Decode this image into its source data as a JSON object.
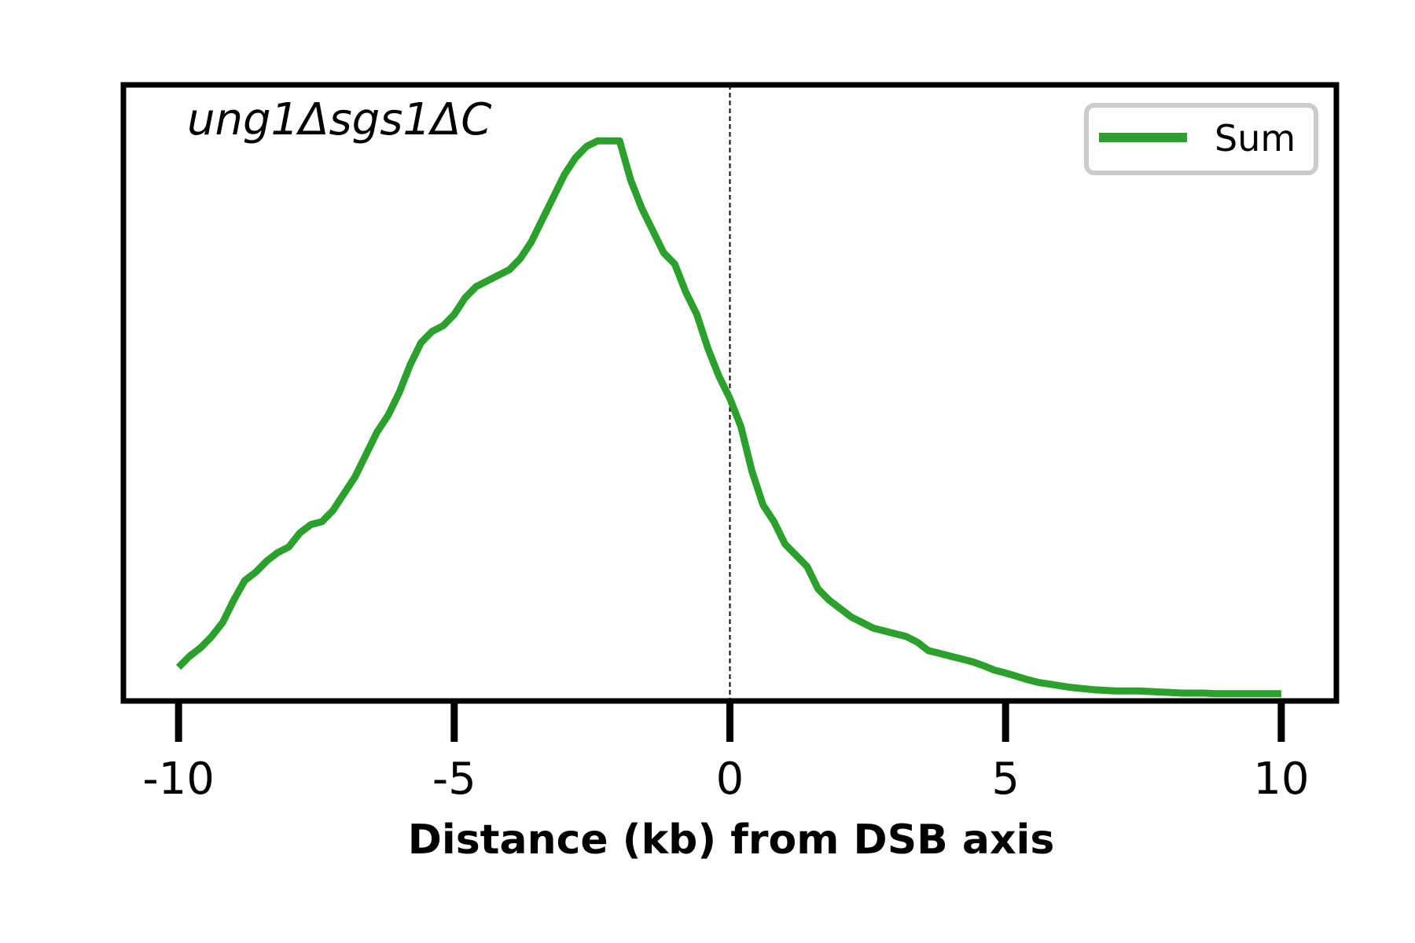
{
  "chart_data": {
    "type": "line",
    "annotation": "ung1Δsgs1ΔC",
    "xlabel": "Distance (kb) from DSB axis",
    "ylabel": "",
    "xlim": [
      -11,
      11
    ],
    "ylim": [
      0,
      1.1
    ],
    "xticks": [
      -10,
      -5,
      0,
      5,
      10
    ],
    "xtick_labels": [
      "-10",
      "-5",
      "0",
      "5",
      "10"
    ],
    "yticks_visible": false,
    "vline_x": 0,
    "legend": {
      "position": "top-right"
    },
    "series": [
      {
        "name": "Sum",
        "color": "#2ca02c",
        "x": [
          -10.0,
          -9.8,
          -9.6,
          -9.4,
          -9.2,
          -9.0,
          -8.8,
          -8.6,
          -8.4,
          -8.2,
          -8.0,
          -7.8,
          -7.6,
          -7.4,
          -7.2,
          -7.0,
          -6.8,
          -6.6,
          -6.4,
          -6.2,
          -6.0,
          -5.8,
          -5.6,
          -5.4,
          -5.2,
          -5.0,
          -4.8,
          -4.6,
          -4.4,
          -4.2,
          -4.0,
          -3.8,
          -3.6,
          -3.4,
          -3.2,
          -3.0,
          -2.8,
          -2.6,
          -2.4,
          -2.2,
          -2.0,
          -1.8,
          -1.6,
          -1.4,
          -1.2,
          -1.0,
          -0.8,
          -0.6,
          -0.4,
          -0.2,
          0.0,
          0.2,
          0.4,
          0.6,
          0.8,
          1.0,
          1.2,
          1.4,
          1.6,
          1.8,
          2.0,
          2.2,
          2.4,
          2.6,
          2.8,
          3.0,
          3.2,
          3.4,
          3.6,
          3.8,
          4.0,
          4.2,
          4.4,
          4.6,
          4.8,
          5.0,
          5.2,
          5.4,
          5.6,
          5.8,
          6.0,
          6.2,
          6.4,
          6.6,
          6.8,
          7.0,
          7.2,
          7.4,
          7.6,
          7.8,
          8.0,
          8.2,
          8.4,
          8.6,
          8.8,
          9.0,
          9.2,
          9.4,
          9.6,
          9.8,
          10.0
        ],
        "y": [
          0.06,
          0.08,
          0.095,
          0.115,
          0.14,
          0.18,
          0.215,
          0.23,
          0.25,
          0.265,
          0.275,
          0.3,
          0.315,
          0.32,
          0.34,
          0.37,
          0.4,
          0.44,
          0.48,
          0.51,
          0.55,
          0.6,
          0.64,
          0.66,
          0.67,
          0.69,
          0.72,
          0.74,
          0.75,
          0.76,
          0.77,
          0.79,
          0.82,
          0.86,
          0.9,
          0.94,
          0.97,
          0.99,
          1.0,
          1.0,
          1.0,
          0.93,
          0.88,
          0.84,
          0.8,
          0.78,
          0.73,
          0.69,
          0.63,
          0.58,
          0.54,
          0.49,
          0.41,
          0.35,
          0.32,
          0.28,
          0.26,
          0.24,
          0.2,
          0.18,
          0.165,
          0.15,
          0.14,
          0.13,
          0.125,
          0.12,
          0.115,
          0.105,
          0.09,
          0.085,
          0.08,
          0.075,
          0.07,
          0.063,
          0.055,
          0.05,
          0.044,
          0.038,
          0.033,
          0.03,
          0.027,
          0.024,
          0.022,
          0.02,
          0.019,
          0.018,
          0.018,
          0.018,
          0.017,
          0.016,
          0.015,
          0.014,
          0.014,
          0.014,
          0.013,
          0.013,
          0.013,
          0.013,
          0.013,
          0.013,
          0.013
        ]
      }
    ]
  }
}
